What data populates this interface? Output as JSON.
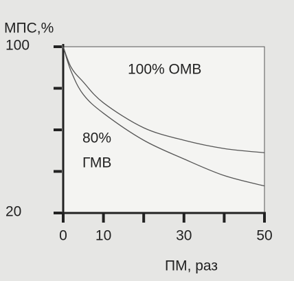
{
  "chart_data": {
    "type": "line",
    "ylabel": "МПС,%",
    "xlabel": "ПМ, раз",
    "annotations": [
      "100% ОМВ",
      "80%",
      "ГМВ"
    ],
    "x": [
      0,
      2,
      5,
      10,
      20,
      30,
      40,
      50
    ],
    "series": [
      {
        "color": "#555555",
        "values": [
          100,
          90,
          83,
          73,
          61,
          55,
          51,
          49
        ]
      },
      {
        "color": "#555555",
        "values": [
          100,
          88,
          77,
          68,
          55,
          46,
          38,
          33
        ]
      }
    ],
    "xlim": [
      0,
      50
    ],
    "ylim": [
      20,
      100
    ],
    "xticks": [
      0,
      10,
      {
        "value": 20,
        "label": null
      },
      30,
      {
        "value": 40,
        "label": null
      },
      50
    ],
    "yticks": [
      20,
      {
        "value": 40,
        "label": null
      },
      {
        "value": 60,
        "label": null
      },
      {
        "value": 80,
        "label": null
      },
      100
    ]
  }
}
